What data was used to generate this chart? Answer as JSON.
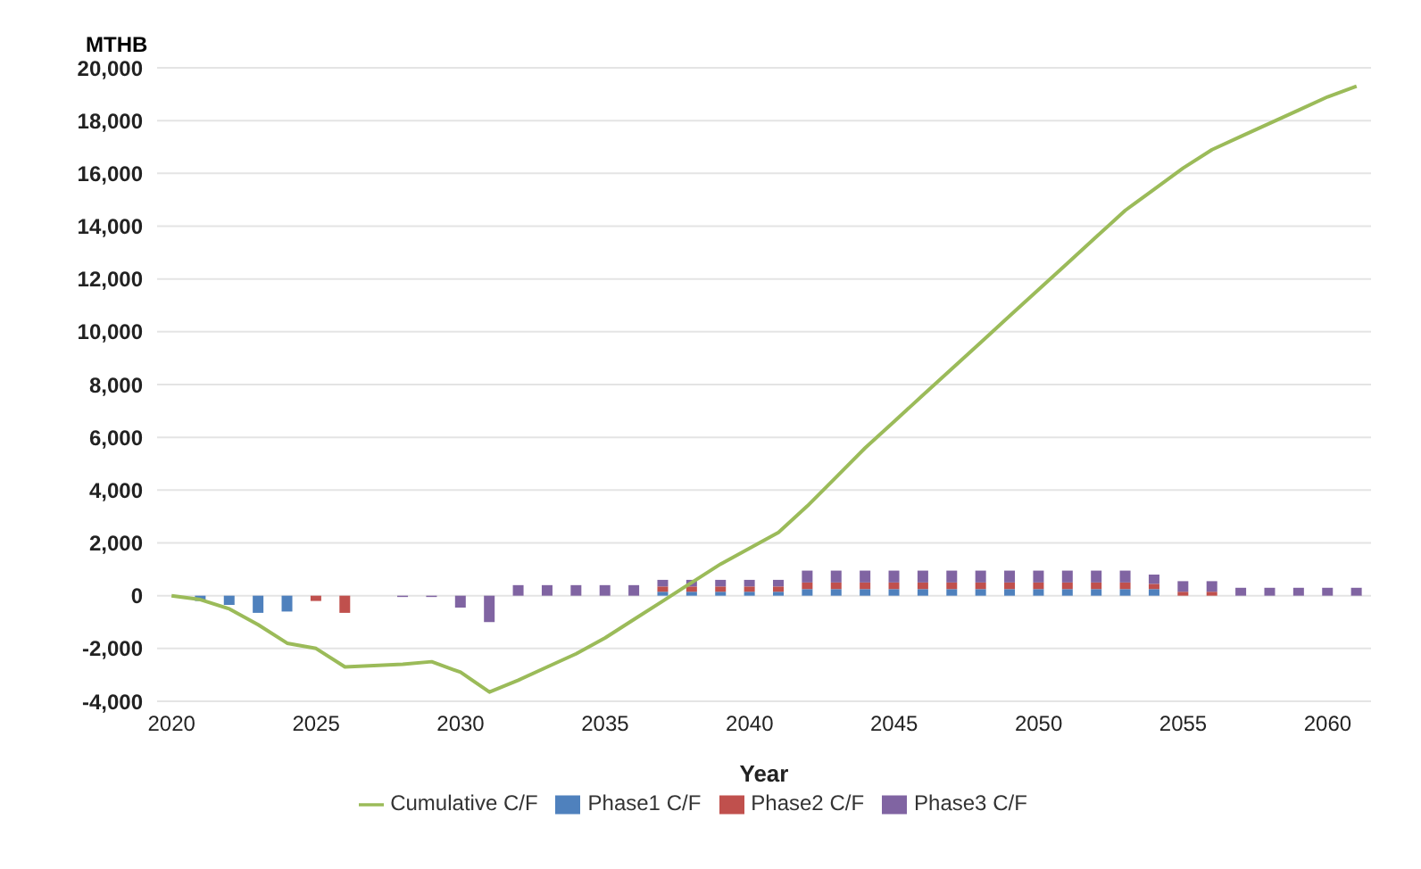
{
  "chart_data": {
    "type": "bar",
    "stacked": true,
    "xlabel": "Year",
    "ylabel": "MTHB",
    "categories": [
      "2020",
      null,
      null,
      null,
      null,
      "2025",
      null,
      null,
      null,
      null,
      "2030",
      null,
      null,
      null,
      null,
      "2035",
      null,
      null,
      null,
      null,
      "2040",
      null,
      null,
      null,
      null,
      "2045",
      null,
      null,
      null,
      null,
      "2050",
      null,
      null,
      null,
      null,
      "2055",
      null,
      null,
      null,
      null,
      "2060",
      null
    ],
    "ylim": [
      -4000,
      20000
    ],
    "yticks": [
      {
        "value": -4000,
        "label": "-4,000"
      },
      {
        "value": -2000,
        "label": "-2,000"
      },
      0,
      {
        "value": 2000,
        "label": "2,000"
      },
      {
        "value": 4000,
        "label": "4,000"
      },
      {
        "value": 6000,
        "label": "6,000"
      },
      {
        "value": 8000,
        "label": "8,000"
      },
      {
        "value": 10000,
        "label": "10,000"
      },
      {
        "value": 12000,
        "label": "12,000"
      },
      {
        "value": 14000,
        "label": "14,000"
      },
      {
        "value": 16000,
        "label": "16,000"
      },
      {
        "value": 18000,
        "label": "18,000"
      },
      {
        "value": 20000,
        "label": "20,000"
      }
    ],
    "grid": "y",
    "legend": "bottom",
    "marker": "none",
    "series": [
      {
        "name": "Phase1 C/F",
        "color": "#4f81bd",
        "values": [
          null,
          -200,
          -350,
          -650,
          -600,
          null,
          null,
          null,
          null,
          null,
          null,
          null,
          null,
          null,
          null,
          null,
          null,
          150,
          150,
          150,
          150,
          150,
          250,
          250,
          250,
          250,
          250,
          250,
          250,
          250,
          250,
          250,
          250,
          250,
          250,
          null,
          null,
          null,
          null,
          null,
          null,
          null
        ]
      },
      {
        "name": "Phase2 C/F",
        "color": "#c0504d",
        "values": [
          null,
          null,
          null,
          null,
          null,
          -200,
          -650,
          null,
          null,
          null,
          null,
          null,
          null,
          null,
          null,
          null,
          null,
          200,
          200,
          200,
          200,
          200,
          250,
          250,
          250,
          250,
          250,
          250,
          250,
          250,
          250,
          250,
          250,
          250,
          200,
          150,
          150,
          null,
          null,
          null,
          null,
          null
        ]
      },
      {
        "name": "Phase3 C/F",
        "color": "#8064a2",
        "values": [
          null,
          null,
          null,
          null,
          null,
          null,
          null,
          null,
          -50,
          -50,
          -450,
          -1000,
          400,
          400,
          400,
          400,
          400,
          250,
          250,
          250,
          250,
          250,
          450,
          450,
          450,
          450,
          450,
          450,
          450,
          450,
          450,
          450,
          450,
          450,
          350,
          400,
          400,
          300,
          300,
          300,
          300,
          300
        ]
      },
      {
        "name": "Cumulative C/F",
        "type": "line",
        "color": "#9bbb59",
        "values": [
          0,
          -150,
          -500,
          -1100,
          -1800,
          -2000,
          -2700,
          -2650,
          -2600,
          -2500,
          -2900,
          -3650,
          -3200,
          -2700,
          -2200,
          -1600,
          -900,
          -200,
          500,
          1200,
          1800,
          2400,
          3400,
          4500,
          5600,
          6600,
          7600,
          8600,
          9600,
          10600,
          11600,
          12600,
          13600,
          14600,
          15400,
          16200,
          16900,
          17400,
          17900,
          18400,
          18900,
          19300
        ]
      }
    ]
  }
}
